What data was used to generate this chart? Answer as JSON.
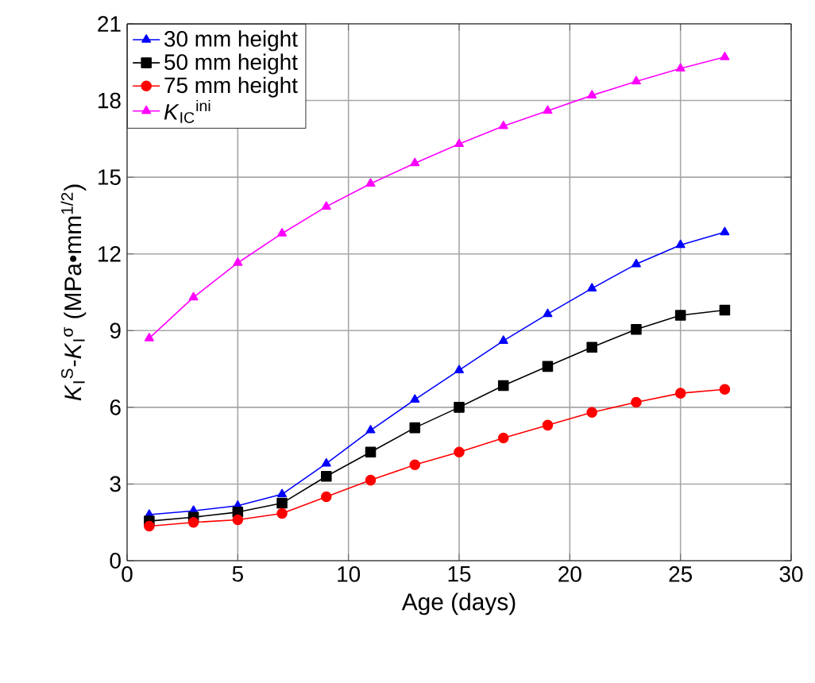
{
  "chart_data": {
    "type": "line",
    "xlabel": "Age (days)",
    "ylabel": "*K*$_{I}$$^{S}$-*K*$_{I}$$^{σ}$ (MPa•mm$^{1/2}$)",
    "x": [
      1,
      3,
      5,
      7,
      9,
      11,
      13,
      15,
      17,
      19,
      21,
      23,
      25,
      27
    ],
    "series": [
      {
        "name": "30 mm height",
        "color": "#0000ff",
        "marker": "triangle",
        "values": [
          1.8,
          1.95,
          2.15,
          2.6,
          3.8,
          5.1,
          6.3,
          7.45,
          8.6,
          9.65,
          10.65,
          11.6,
          12.35,
          12.85
        ]
      },
      {
        "name": "50 mm height",
        "color": "#000000",
        "marker": "square",
        "values": [
          1.55,
          1.7,
          1.9,
          2.25,
          3.3,
          4.25,
          5.2,
          6.0,
          6.85,
          7.6,
          8.35,
          9.05,
          9.6,
          9.8
        ]
      },
      {
        "name": "75 mm height",
        "color": "#ff0000",
        "marker": "circle",
        "values": [
          1.35,
          1.5,
          1.6,
          1.85,
          2.5,
          3.15,
          3.75,
          4.25,
          4.8,
          5.3,
          5.8,
          6.2,
          6.55,
          6.7
        ]
      },
      {
        "name": "*K*$_{IC}$$^{ini}$",
        "color": "#ff00ff",
        "marker": "triangle",
        "values": [
          8.7,
          10.3,
          11.65,
          12.8,
          13.85,
          14.75,
          15.55,
          16.3,
          17.0,
          17.6,
          18.2,
          18.75,
          19.25,
          19.7
        ]
      }
    ],
    "xlim": [
      0,
      30
    ],
    "xticks": [
      0,
      5,
      10,
      15,
      20,
      25,
      30
    ],
    "ylim": [
      0,
      21
    ],
    "yticks": [
      0,
      3,
      6,
      9,
      12,
      15,
      18,
      21
    ],
    "grid": true,
    "legend": "top left",
    "line_style": "solid"
  }
}
